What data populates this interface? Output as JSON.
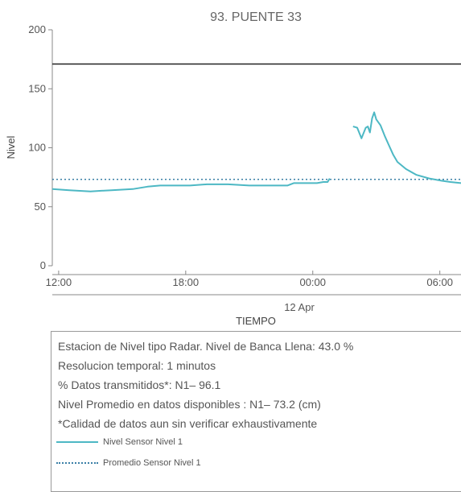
{
  "chart_data": {
    "type": "line",
    "title": "93. PUENTE 33",
    "xlabel": "TIEMPO",
    "ylabel": "Nivel",
    "ylim": [
      0,
      200
    ],
    "yticks": [
      "0",
      "50",
      "100",
      "150",
      "200"
    ],
    "xticks": [
      "12:00",
      "18:00",
      "00:00",
      "06:00"
    ],
    "x_date_label": "12 Apr",
    "x_unit": "hours",
    "xlim": [
      11.7,
      31.0
    ],
    "threshold": {
      "value": 171,
      "color": "#222222"
    },
    "series": [
      {
        "name": "Nivel Sensor Nivel 1",
        "color": "#4db8c4",
        "style": "solid",
        "segments": [
          [
            [
              11.7,
              65
            ],
            [
              12.5,
              64
            ],
            [
              13.5,
              63
            ],
            [
              14.5,
              64
            ],
            [
              15.5,
              65
            ],
            [
              16.2,
              67
            ],
            [
              16.8,
              68
            ],
            [
              17.5,
              68
            ],
            [
              18.2,
              68
            ],
            [
              19.0,
              69
            ],
            [
              20.0,
              69
            ],
            [
              21.0,
              68
            ],
            [
              22.0,
              68
            ],
            [
              22.8,
              68
            ],
            [
              23.1,
              70
            ],
            [
              23.6,
              70
            ],
            [
              24.2,
              70
            ],
            [
              24.5,
              71
            ],
            [
              24.7,
              71
            ],
            [
              24.8,
              74
            ]
          ],
          [
            [
              25.9,
              118
            ],
            [
              26.1,
              117
            ],
            [
              26.3,
              108
            ],
            [
              26.5,
              117
            ],
            [
              26.6,
              118
            ],
            [
              26.7,
              113
            ],
            [
              26.8,
              125
            ],
            [
              26.9,
              130
            ],
            [
              27.0,
              124
            ],
            [
              27.2,
              119
            ],
            [
              27.4,
              110
            ],
            [
              27.6,
              102
            ],
            [
              27.8,
              94
            ],
            [
              28.0,
              88
            ],
            [
              28.4,
              82
            ],
            [
              28.9,
              77
            ],
            [
              29.5,
              74
            ],
            [
              30.1,
              72
            ],
            [
              30.5,
              71
            ],
            [
              31.0,
              70
            ]
          ]
        ]
      },
      {
        "name": "Promedio Sensor Nivel 1",
        "color": "#3a7fa6",
        "style": "dotted",
        "value": 73.2
      }
    ],
    "grid": false
  },
  "info": {
    "line1": "Estacion de Nivel tipo Radar. Nivel de Banca Llena: 43.0 %",
    "line2": "Resolucion temporal: 1 minutos",
    "line3": "% Datos transmitidos*: N1– 96.1",
    "line4": "Nivel Promedio en datos disponibles : N1– 73.2 (cm)",
    "line5": "*Calidad de datos aun sin verificar exhaustivamente",
    "legend_solid": "Nivel Sensor Nivel 1",
    "legend_dotted": "Promedio Sensor Nivel 1"
  }
}
